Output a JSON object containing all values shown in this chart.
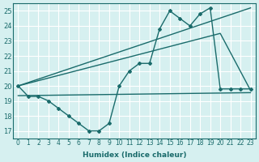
{
  "xlabel": "Humidex (Indice chaleur)",
  "ylabel": "",
  "bg_color": "#d6f0f0",
  "line_color": "#1a6b6b",
  "xlim": [
    -0.5,
    23.5
  ],
  "ylim": [
    16.5,
    25.5
  ],
  "xticks": [
    0,
    1,
    2,
    3,
    4,
    5,
    6,
    7,
    8,
    9,
    10,
    11,
    12,
    13,
    14,
    15,
    16,
    17,
    18,
    19,
    20,
    21,
    22,
    23
  ],
  "yticks": [
    17,
    18,
    19,
    20,
    21,
    22,
    23,
    24,
    25
  ],
  "line_flat": {
    "x": [
      0,
      23
    ],
    "y": [
      19.35,
      19.55
    ],
    "marker": false
  },
  "line_diagonal1": {
    "x": [
      0,
      23
    ],
    "y": [
      20.0,
      25.2
    ],
    "marker": false
  },
  "line_diagonal2": {
    "x": [
      0,
      20,
      23
    ],
    "y": [
      20.0,
      23.5,
      19.7
    ],
    "marker": false
  },
  "line_zigzag": {
    "x": [
      0,
      1,
      2,
      3,
      4,
      5,
      6,
      7,
      8,
      9,
      10,
      11,
      12,
      13,
      14,
      15,
      16,
      17,
      18,
      19,
      20,
      21,
      22,
      23
    ],
    "y": [
      20.0,
      19.3,
      19.3,
      19.0,
      18.5,
      18.0,
      17.5,
      17.0,
      17.0,
      17.5,
      20.0,
      21.0,
      21.5,
      21.5,
      23.8,
      25.0,
      24.5,
      24.0,
      24.8,
      25.2,
      19.8,
      19.8,
      19.8,
      19.8
    ],
    "marker": true
  }
}
